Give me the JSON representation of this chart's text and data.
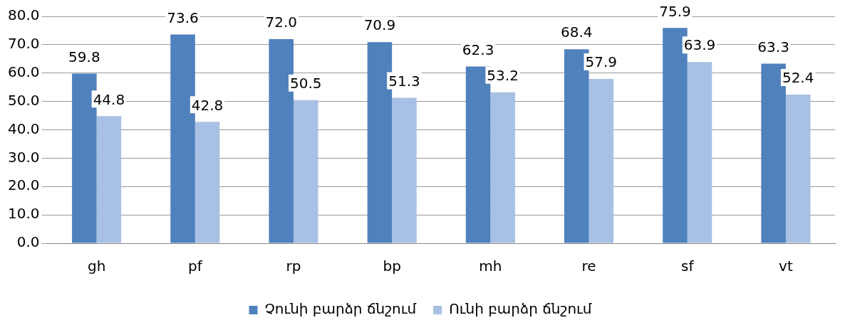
{
  "chart_data": {
    "type": "bar",
    "categories": [
      "gh",
      "pf",
      "rp",
      "bp",
      "mh",
      "re",
      "sf",
      "vt"
    ],
    "series": [
      {
        "name": "Չունի բարձր ճնշում",
        "color": "#4f81bd",
        "values": [
          59.8,
          73.6,
          72.0,
          70.9,
          62.3,
          68.4,
          75.9,
          63.3
        ],
        "value_labels": [
          "59.8",
          "73.6",
          "72.0",
          "70.9",
          "62.3",
          "68.4",
          "75.9",
          "63.3"
        ]
      },
      {
        "name": "Ունի բարձր ճնշում",
        "color": "#a7c0e3",
        "values": [
          44.8,
          42.8,
          50.5,
          51.3,
          53.2,
          57.9,
          63.9,
          52.4
        ],
        "value_labels": [
          "44.8",
          "42.8",
          "50.5",
          "51.3",
          "53.2",
          "57.9",
          "63.9",
          "52.4"
        ]
      }
    ],
    "ylim": [
      0,
      80
    ],
    "yticks": [
      {
        "value": 0,
        "label": "0.0"
      },
      {
        "value": 10,
        "label": "10.0"
      },
      {
        "value": 20,
        "label": "20.0"
      },
      {
        "value": 30,
        "label": "30.0"
      },
      {
        "value": 40,
        "label": "40.0"
      },
      {
        "value": 50,
        "label": "50.0"
      },
      {
        "value": 60,
        "label": "60.0"
      },
      {
        "value": 70,
        "label": "70.0"
      },
      {
        "value": 80,
        "label": "80.0"
      }
    ],
    "grid": "y",
    "legend": "bottom"
  }
}
